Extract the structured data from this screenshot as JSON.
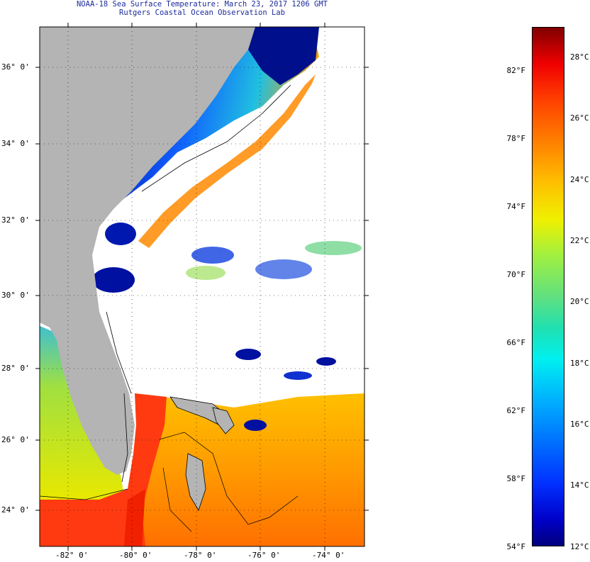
{
  "title": {
    "line1": "NOAA-18 Sea Surface Temperature:  March 23, 2017 1206 GMT",
    "line2": "Rutgers Coastal Ocean Observation Lab"
  },
  "map": {
    "lat_labels": [
      "36° 0'",
      "34° 0'",
      "32° 0'",
      "30° 0'",
      "28° 0'",
      "26° 0'",
      "24° 0'"
    ],
    "lon_labels": [
      "-82° 0'",
      "-80° 0'",
      "-78° 0'",
      "-76° 0'",
      "-74° 0'"
    ],
    "lat_range": [
      23,
      37
    ],
    "lon_range": [
      -83,
      -73
    ],
    "colors": {
      "land": "#b4b4b4",
      "cloud": "#ffffff",
      "cold": "#0010c0",
      "warm": "#ff3000",
      "gulf_stream": "#ff4010"
    }
  },
  "colorbar": {
    "fahrenheit": [
      "82°F",
      "78°F",
      "74°F",
      "70°F",
      "66°F",
      "62°F",
      "58°F",
      "54°F"
    ],
    "celsius": [
      "28°C",
      "26°C",
      "24°C",
      "22°C",
      "20°C",
      "18°C",
      "16°C",
      "14°C",
      "12°C"
    ]
  }
}
